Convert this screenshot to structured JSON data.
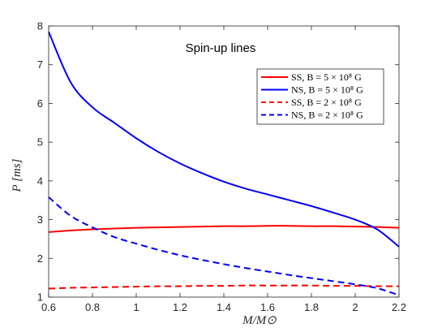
{
  "chart_data": {
    "type": "line",
    "annotation": "Spin-up lines",
    "xlabel": "M/M⊙",
    "ylabel": "P [ms]",
    "xlim": [
      0.6,
      2.2
    ],
    "ylim": [
      1,
      8
    ],
    "xticks": [
      "0.6",
      "0.8",
      "1",
      "1.2",
      "1.4",
      "1.6",
      "1.8",
      "2",
      "2.2"
    ],
    "yticks": [
      "1",
      "2",
      "3",
      "4",
      "5",
      "6",
      "7",
      "8"
    ],
    "legend_position": "top-right",
    "grid": false,
    "x": [
      0.6,
      0.7,
      0.8,
      0.9,
      1.0,
      1.1,
      1.2,
      1.3,
      1.4,
      1.5,
      1.6,
      1.7,
      1.8,
      1.9,
      2.0,
      2.1,
      2.2
    ],
    "series": [
      {
        "name": "SS, B = 5 × 10⁸ G",
        "color": "#ff0000",
        "dash": "solid",
        "values": [
          2.68,
          2.72,
          2.75,
          2.77,
          2.79,
          2.8,
          2.81,
          2.82,
          2.83,
          2.83,
          2.84,
          2.84,
          2.83,
          2.83,
          2.82,
          2.81,
          2.79
        ]
      },
      {
        "name": "NS, B = 5 × 10⁸ G",
        "color": "#0000ff",
        "dash": "solid",
        "values": [
          7.85,
          6.55,
          5.9,
          5.5,
          5.1,
          4.75,
          4.45,
          4.2,
          3.98,
          3.8,
          3.65,
          3.5,
          3.35,
          3.18,
          3.0,
          2.75,
          2.3
        ]
      },
      {
        "name": "SS, B = 2 × 10⁸ G",
        "color": "#ff0000",
        "dash": "dashed",
        "values": [
          1.22,
          1.24,
          1.25,
          1.26,
          1.27,
          1.28,
          1.28,
          1.29,
          1.29,
          1.3,
          1.3,
          1.3,
          1.3,
          1.29,
          1.29,
          1.28,
          1.28
        ]
      },
      {
        "name": "NS, B = 2 × 10⁸ G",
        "color": "#0000ff",
        "dash": "dashed",
        "values": [
          3.58,
          3.1,
          2.8,
          2.55,
          2.38,
          2.22,
          2.08,
          1.96,
          1.85,
          1.75,
          1.66,
          1.57,
          1.49,
          1.41,
          1.33,
          1.23,
          1.05
        ]
      }
    ]
  }
}
